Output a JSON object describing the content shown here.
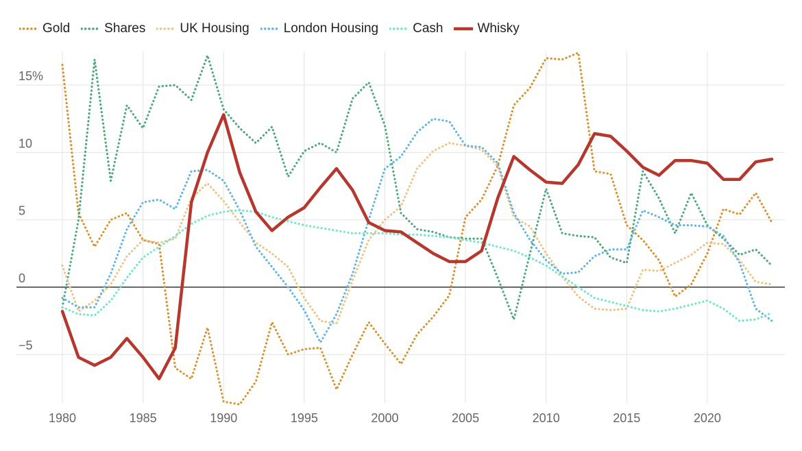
{
  "chart_data": {
    "type": "line",
    "title": "",
    "xlabel": "",
    "ylabel": "",
    "xlim": [
      1980,
      2024
    ],
    "ylim": [
      -8.6,
      17.5
    ],
    "grid": true,
    "legend_position": "top-left",
    "x_ticks": [
      {
        "value": 1980,
        "label": "1980"
      },
      {
        "value": 1985,
        "label": "1985"
      },
      {
        "value": 1990,
        "label": "1990"
      },
      {
        "value": 1995,
        "label": "1995"
      },
      {
        "value": 2000,
        "label": "2000"
      },
      {
        "value": 2005,
        "label": "2005"
      },
      {
        "value": 2010,
        "label": "2010"
      },
      {
        "value": 2015,
        "label": "2015"
      },
      {
        "value": 2020,
        "label": "2020"
      }
    ],
    "y_ticks": [
      {
        "value": 15,
        "label": "15%"
      },
      {
        "value": 10,
        "label": "10"
      },
      {
        "value": 5,
        "label": "5"
      },
      {
        "value": 0,
        "label": "0"
      },
      {
        "value": -5,
        "label": "−5"
      }
    ],
    "x": [
      1980,
      1981,
      1982,
      1983,
      1984,
      1985,
      1986,
      1987,
      1988,
      1989,
      1990,
      1991,
      1992,
      1993,
      1994,
      1995,
      1996,
      1997,
      1998,
      1999,
      2000,
      2001,
      2002,
      2003,
      2004,
      2005,
      2006,
      2007,
      2008,
      2009,
      2010,
      2011,
      2012,
      2013,
      2014,
      2015,
      2016,
      2017,
      2018,
      2019,
      2020,
      2021,
      2022,
      2023,
      2024
    ],
    "series": [
      {
        "name": "Gold",
        "color": "#d8912e",
        "style": "dotted",
        "values": [
          16.5,
          5.5,
          3.0,
          5.0,
          5.5,
          3.5,
          3.2,
          -6.0,
          -6.8,
          -3.0,
          -8.5,
          -8.7,
          -7.0,
          -2.6,
          -5.0,
          -4.6,
          -4.5,
          -7.6,
          -5.0,
          -2.6,
          -4.2,
          -5.7,
          -3.5,
          -2.2,
          -0.6,
          5.2,
          6.5,
          9.0,
          13.5,
          14.8,
          17.0,
          16.9,
          17.4,
          8.6,
          8.4,
          4.6,
          3.5,
          2.0,
          -0.7,
          0.2,
          2.5,
          5.8,
          5.4,
          7.0,
          4.8
        ]
      },
      {
        "name": "Shares",
        "color": "#4aa97a",
        "style": "dotted",
        "values": [
          -1.5,
          5.0,
          16.9,
          7.9,
          13.5,
          11.8,
          14.9,
          15.0,
          13.9,
          17.2,
          13.2,
          11.8,
          10.7,
          11.9,
          8.2,
          10.1,
          10.7,
          10.0,
          14.0,
          15.2,
          12.0,
          5.5,
          4.3,
          4.1,
          3.7,
          3.6,
          3.6,
          0.7,
          -2.4,
          2.5,
          7.3,
          4.0,
          3.8,
          3.7,
          2.2,
          1.8,
          8.6,
          6.6,
          4.0,
          7.0,
          4.6,
          3.6,
          2.4,
          2.8,
          1.6
        ]
      },
      {
        "name": "UK Housing",
        "color": "#edc385",
        "style": "dotted",
        "values": [
          1.6,
          -1.8,
          -1.0,
          0.2,
          2.3,
          3.5,
          3.3,
          3.6,
          6.6,
          7.7,
          6.4,
          4.8,
          3.3,
          2.5,
          1.5,
          -0.8,
          -2.5,
          -2.7,
          0.5,
          3.5,
          5.0,
          6.0,
          8.8,
          10.1,
          10.7,
          10.5,
          10.2,
          9.0,
          5.2,
          4.5,
          2.5,
          0.8,
          -0.7,
          -1.6,
          -1.7,
          -1.6,
          1.3,
          1.2,
          1.8,
          2.4,
          3.3,
          3.2,
          2.0,
          0.4,
          0.2
        ]
      },
      {
        "name": "London Housing",
        "color": "#5fb4e8",
        "style": "dotted",
        "values": [
          -0.8,
          -1.5,
          -1.5,
          1.0,
          4.3,
          6.3,
          6.5,
          5.8,
          8.6,
          8.7,
          7.9,
          5.7,
          3.0,
          1.5,
          0.0,
          -1.7,
          -4.1,
          -2.0,
          1.0,
          5.0,
          8.8,
          9.7,
          11.5,
          12.5,
          12.3,
          10.5,
          10.4,
          9.2,
          5.5,
          3.5,
          2.0,
          1.0,
          1.1,
          2.3,
          2.8,
          2.8,
          5.7,
          5.2,
          4.6,
          4.6,
          4.5,
          3.8,
          1.8,
          -1.6,
          -2.5
        ]
      },
      {
        "name": "Cash",
        "color": "#72e6c6",
        "style": "dotted",
        "values": [
          -1.5,
          -2.0,
          -2.1,
          -1.0,
          0.7,
          2.2,
          3.0,
          3.8,
          4.7,
          5.3,
          5.6,
          5.7,
          5.6,
          5.2,
          4.9,
          4.6,
          4.4,
          4.2,
          4.0,
          4.0,
          4.0,
          3.9,
          3.9,
          3.8,
          3.7,
          3.5,
          3.3,
          3.0,
          2.7,
          2.2,
          1.6,
          0.8,
          0.0,
          -0.8,
          -1.1,
          -1.4,
          -1.7,
          -1.8,
          -1.6,
          -1.3,
          -1.0,
          -1.6,
          -2.5,
          -2.4,
          -1.9
        ]
      },
      {
        "name": "Whisky",
        "color": "#b5372d",
        "style": "solid",
        "values": [
          -1.8,
          -5.2,
          -5.8,
          -5.2,
          -3.8,
          -5.2,
          -6.8,
          -4.5,
          6.3,
          10.0,
          12.8,
          8.5,
          5.6,
          4.2,
          5.2,
          5.9,
          7.4,
          8.8,
          7.2,
          4.8,
          4.2,
          4.1,
          3.3,
          2.5,
          1.9,
          1.9,
          2.7,
          6.6,
          9.7,
          8.7,
          7.8,
          7.7,
          9.1,
          11.4,
          11.2,
          10.1,
          8.9,
          8.3,
          9.4,
          9.4,
          9.2,
          8.0,
          8.0,
          9.3,
          9.5
        ]
      }
    ]
  }
}
